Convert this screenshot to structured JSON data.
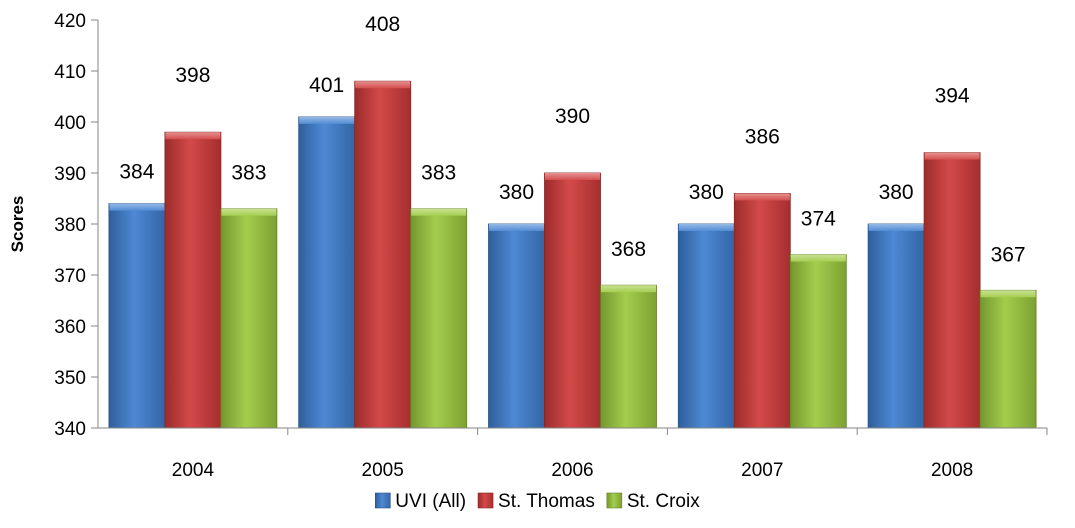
{
  "chart_data": {
    "type": "bar",
    "title": "",
    "xlabel": "",
    "ylabel": "Scores",
    "ylim": [
      340,
      420
    ],
    "yticks": [
      340,
      350,
      360,
      370,
      380,
      390,
      400,
      410,
      420
    ],
    "grid": false,
    "legend_position": "bottom",
    "categories": [
      "2004",
      "2005",
      "2006",
      "2007",
      "2008"
    ],
    "series": [
      {
        "name": "UVI (All)",
        "color": "#3f7fd0",
        "values": [
          384,
          401,
          380,
          380,
          380
        ]
      },
      {
        "name": "St. Thomas",
        "color": "#cf3a39",
        "values": [
          398,
          408,
          390,
          386,
          394
        ]
      },
      {
        "name": "St. Croix",
        "color": "#9cc93e",
        "values": [
          383,
          383,
          368,
          374,
          367
        ]
      }
    ],
    "data_labels": [
      [
        "384",
        "401",
        "380",
        "380",
        "380"
      ],
      [
        "398",
        "408",
        "390",
        "386",
        "394"
      ],
      [
        "383",
        "383",
        "368",
        "374",
        "367"
      ]
    ]
  }
}
